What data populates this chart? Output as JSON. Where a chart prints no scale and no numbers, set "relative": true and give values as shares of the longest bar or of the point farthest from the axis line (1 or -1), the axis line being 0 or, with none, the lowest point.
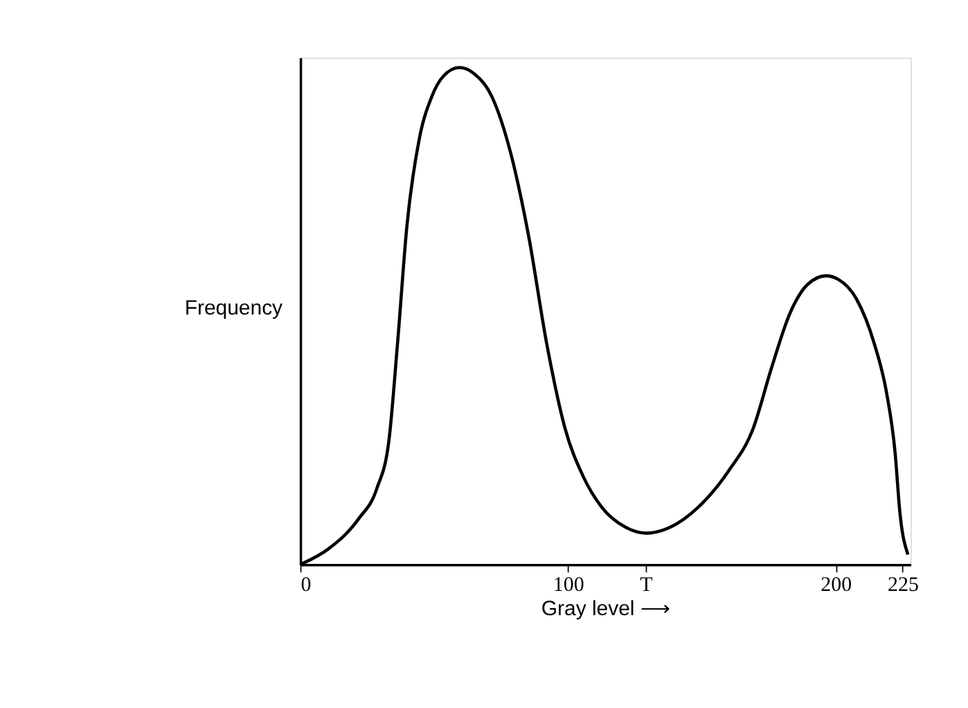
{
  "chart_data": {
    "type": "line",
    "relative": true,
    "xlabel": "Gray level ⟶",
    "ylabel": "Frequency",
    "xlim": [
      0,
      228
    ],
    "xticks": [
      0,
      100,
      {
        "value": 129,
        "label": "T"
      },
      200,
      225
    ],
    "tick_labels": "x",
    "grid": false,
    "marker": "none",
    "line_style": "solid",
    "x": [
      0,
      10.4,
      21.8,
      28.6,
      33.1,
      36.3,
      39.9,
      44.4,
      49,
      53.5,
      59.4,
      64.9,
      71.7,
      78.5,
      85.3,
      92.1,
      98.9,
      105.7,
      112.5,
      121.5,
      129.3,
      137.4,
      148.8,
      160.1,
      169.2,
      176,
      182.8,
      189.6,
      196.4,
      200.9,
      207.7,
      214.5,
      219,
      222.2,
      224,
      227
    ],
    "series": [
      {
        "color": "#000000",
        "values": [
          0,
          0.031,
          0.092,
          0.153,
          0.249,
          0.443,
          0.685,
          0.855,
          0.94,
          0.983,
          1,
          0.988,
          0.94,
          0.83,
          0.661,
          0.443,
          0.274,
          0.177,
          0.116,
          0.075,
          0.063,
          0.073,
          0.116,
          0.189,
          0.274,
          0.395,
          0.504,
          0.564,
          0.581,
          0.574,
          0.535,
          0.443,
          0.346,
          0.225,
          0.104,
          0.02
        ]
      }
    ]
  }
}
